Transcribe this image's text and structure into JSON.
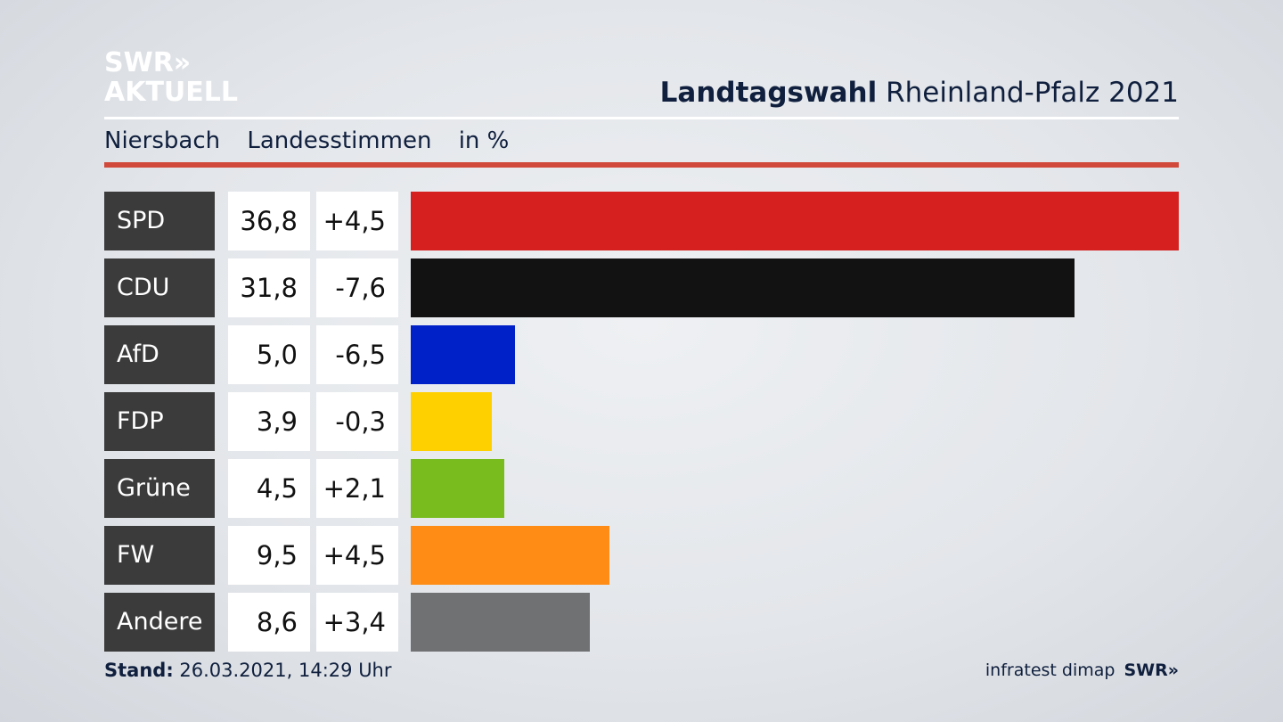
{
  "logo": {
    "line1": "SWR»",
    "line2": "AKTUELL"
  },
  "header": {
    "title_bold": "Landtagswahl",
    "title_rest": "Rheinland-Pfalz 2021"
  },
  "subtitle": {
    "place": "Niersbach",
    "measure": "Landesstimmen",
    "unit": "in %"
  },
  "footer": {
    "stand_label": "Stand:",
    "stand_value": "26.03.2021, 14:29 Uhr",
    "source": "infratest dimap",
    "brand": "SWR»"
  },
  "chart_data": {
    "type": "bar",
    "orientation": "horizontal",
    "title": "Landtagswahl Rheinland-Pfalz 2021",
    "subtitle": "Niersbach Landesstimmen in %",
    "categories": [
      "SPD",
      "CDU",
      "AfD",
      "FDP",
      "Grüne",
      "FW",
      "Andere"
    ],
    "values": [
      36.8,
      31.8,
      5.0,
      3.9,
      4.5,
      9.5,
      8.6
    ],
    "value_labels": [
      "36,8",
      "31,8",
      "5,0",
      "3,9",
      "4,5",
      "9,5",
      "8,6"
    ],
    "diff_labels": [
      "+4,5",
      "-7,6",
      "-6,5",
      "-0,3",
      "+2,1",
      "+4,5",
      "+3,4"
    ],
    "colors": [
      "#d62020",
      "#121212",
      "#0020c8",
      "#ffd000",
      "#78bc1e",
      "#ff8c14",
      "#707173"
    ],
    "xlim": [
      0,
      36.8
    ]
  }
}
